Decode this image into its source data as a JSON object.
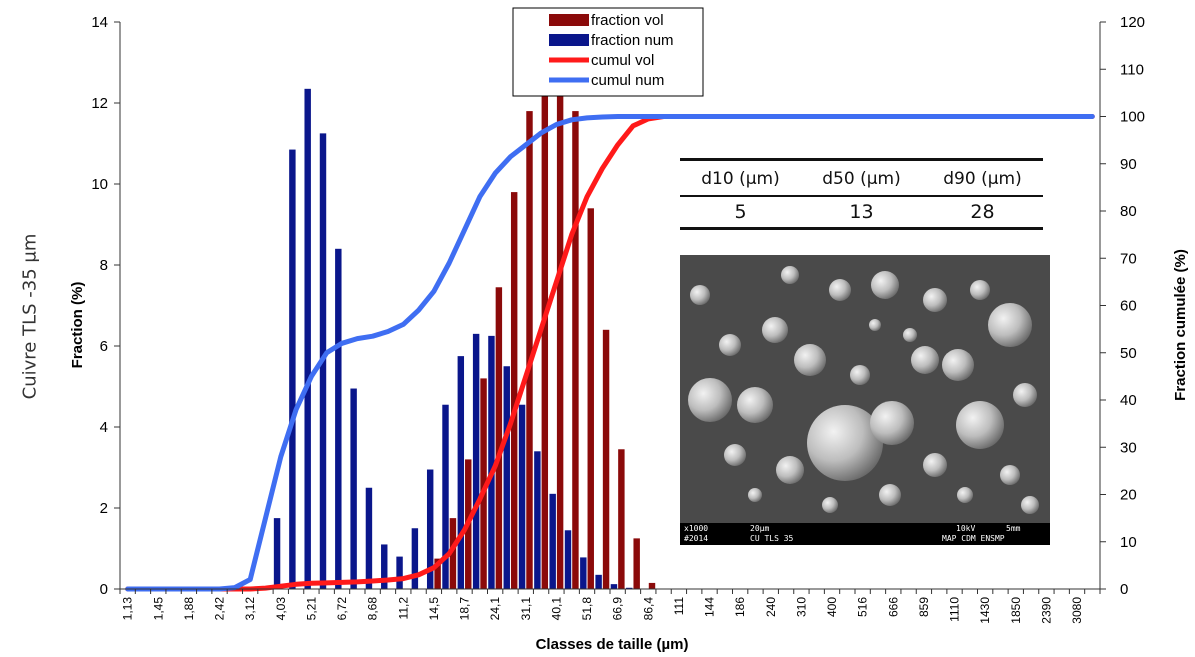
{
  "side_title": "Cuivre TLS -35 µm",
  "inset": {
    "headers": [
      "d10 (µm)",
      "d50 (µm)",
      "d90 (µm)"
    ],
    "values": [
      "5",
      "13",
      "28"
    ],
    "sem_caption": {
      "mag": "x1000",
      "id": "#2014",
      "scale": "20µm",
      "sample": "CU TLS 35",
      "kv": "10kV",
      "wd": "5mm",
      "lab": "MAP CDM ENSMP"
    }
  },
  "chart_data": {
    "type": "bar",
    "xlabel": "Classes de taille (µm)",
    "ylabel": "Fraction (%)",
    "y2label": "Fraction cumulée (%)",
    "ylim": [
      0,
      14
    ],
    "y2lim": [
      0,
      120
    ],
    "yticks": [
      0,
      2,
      4,
      6,
      8,
      10,
      12,
      14
    ],
    "y2ticks": [
      0,
      10,
      20,
      30,
      40,
      50,
      60,
      70,
      80,
      90,
      100,
      110,
      120
    ],
    "tick_labels": [
      "1,13",
      "1,45",
      "1,88",
      "2,42",
      "3,12",
      "4,03",
      "5,21",
      "6,72",
      "8,68",
      "11,2",
      "14,5",
      "18,7",
      "24,1",
      "31,1",
      "40,1",
      "51,8",
      "66,9",
      "86,4",
      "111",
      "144",
      "186",
      "240",
      "310",
      "400",
      "516",
      "666",
      "859",
      "1110",
      "1430",
      "1850",
      "2390",
      "3080"
    ],
    "legend": {
      "position": "top-center",
      "entries": [
        "fraction vol",
        "fraction num",
        "cumul vol",
        "cumul num"
      ]
    },
    "colors": {
      "fraction_vol": "#8b0a0a",
      "fraction_num": "#0a168b",
      "cumul_vol": "#ff1a1a",
      "cumul_num": "#3f6ef2"
    },
    "n_classes": 64,
    "fraction_num": [
      0,
      0,
      0,
      0,
      0,
      0,
      0,
      0,
      0,
      0,
      1.75,
      10.85,
      12.35,
      11.25,
      8.4,
      4.95,
      2.5,
      1.1,
      0.8,
      1.5,
      2.95,
      4.55,
      5.75,
      6.3,
      6.25,
      5.5,
      4.55,
      3.4,
      2.35,
      1.45,
      0.78,
      0.35,
      0.12,
      0.03,
      0,
      0,
      0,
      0,
      0,
      0,
      0,
      0,
      0,
      0,
      0,
      0,
      0,
      0,
      0,
      0,
      0,
      0,
      0,
      0,
      0,
      0,
      0,
      0,
      0,
      0,
      0,
      0,
      0,
      0
    ],
    "fraction_vol": [
      0,
      0,
      0,
      0,
      0,
      0,
      0,
      0,
      0,
      0,
      0,
      0,
      0,
      0,
      0,
      0,
      0,
      0,
      0,
      0,
      0.75,
      1.75,
      3.2,
      5.2,
      7.45,
      9.8,
      11.8,
      12.95,
      13.0,
      11.8,
      9.4,
      6.4,
      3.45,
      1.25,
      0.15,
      0,
      0,
      0,
      0,
      0,
      0,
      0,
      0,
      0,
      0,
      0,
      0,
      0,
      0,
      0,
      0,
      0,
      0,
      0,
      0,
      0,
      0,
      0,
      0,
      0,
      0,
      0,
      0,
      0
    ],
    "cumul_num": [
      0,
      0,
      0,
      0,
      0,
      0,
      0,
      0.3,
      2,
      15,
      28,
      38,
      45,
      50,
      52,
      53,
      53.5,
      54.5,
      56,
      59,
      63,
      69,
      76,
      83,
      88,
      91.5,
      94,
      96.5,
      98.3,
      99.3,
      99.7,
      99.9,
      100,
      100,
      100,
      100,
      100,
      100,
      100,
      100,
      100,
      100,
      100,
      100,
      100,
      100,
      100,
      100,
      100,
      100,
      100,
      100,
      100,
      100,
      100,
      100,
      100,
      100,
      100,
      100,
      100,
      100,
      100,
      100
    ],
    "cumul_vol": [
      0,
      0,
      0,
      0,
      0,
      0,
      0,
      0,
      0,
      0.2,
      0.6,
      1.0,
      1.2,
      1.3,
      1.4,
      1.5,
      1.7,
      1.9,
      2.2,
      3,
      4.5,
      7.5,
      12.5,
      19,
      26,
      35,
      45,
      55,
      65,
      75,
      83,
      89,
      94,
      98,
      99.5,
      100,
      100,
      100,
      100,
      100,
      100,
      100,
      100,
      100,
      100,
      100,
      100,
      100,
      100,
      100,
      100,
      100,
      100,
      100,
      100,
      100,
      100,
      100,
      100,
      100,
      100,
      100,
      100,
      100
    ]
  }
}
